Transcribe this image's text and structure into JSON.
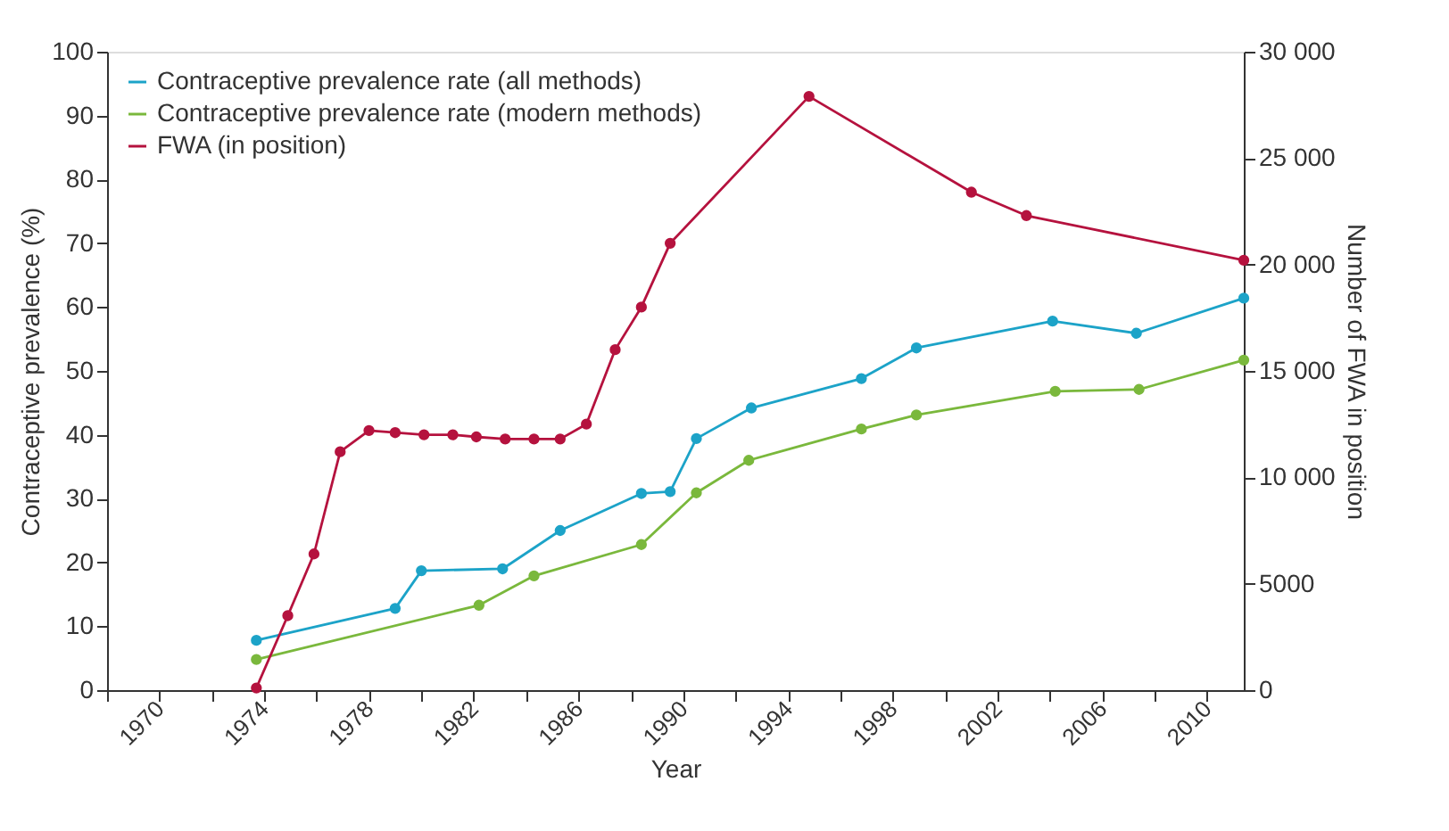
{
  "chart_data": {
    "type": "line",
    "xlabel": "Year",
    "ylabel": "Contraceptive prevalence (%)",
    "y2label": "Number of FWA in position",
    "xlim": [
      1968,
      2011.4
    ],
    "xticks": [
      {
        "value": 1968,
        "label": null
      },
      1970,
      {
        "value": 1972,
        "label": null
      },
      1974,
      {
        "value": 1976,
        "label": null
      },
      1978,
      {
        "value": 1980,
        "label": null
      },
      1982,
      {
        "value": 1984,
        "label": null
      },
      1986,
      {
        "value": 1988,
        "label": null
      },
      1990,
      {
        "value": 1992,
        "label": null
      },
      1994,
      {
        "value": 1996,
        "label": null
      },
      1998,
      {
        "value": 2000,
        "label": null
      },
      2002,
      {
        "value": 2004,
        "label": null
      },
      2006,
      {
        "value": 2008,
        "label": null
      },
      2010
    ],
    "ylim": [
      0,
      100
    ],
    "yticks": [
      0,
      10,
      20,
      30,
      40,
      50,
      60,
      70,
      80,
      90,
      100
    ],
    "y2lim": [
      0,
      30000
    ],
    "y2ticks": [
      0,
      5000,
      {
        "value": 10000,
        "label": "10 000"
      },
      {
        "value": 15000,
        "label": "15 000"
      },
      {
        "value": 20000,
        "label": "20 000"
      },
      {
        "value": 25000,
        "label": "25 000"
      },
      {
        "value": 30000,
        "label": "30 000"
      }
    ],
    "grid": false,
    "legend": "top left",
    "marker": "circle",
    "line_style": "solid",
    "series": [
      {
        "name": "Contraceptive prevalence rate (all methods)",
        "color": "#1ca3c8",
        "x": [
          1973.7,
          1979.0,
          1980.0,
          1983.1,
          1985.3,
          1988.4,
          1989.5,
          1990.5,
          1992.6,
          1996.8,
          1998.9,
          2004.1,
          2007.3,
          2011.4
        ],
        "values": [
          7.8,
          12.8,
          18.7,
          19.0,
          25.0,
          30.8,
          31.1,
          39.4,
          44.2,
          48.8,
          53.6,
          57.8,
          55.9,
          61.4
        ]
      },
      {
        "name": "Contraceptive prevalence rate (modern methods)",
        "color": "#7ab83c",
        "x": [
          1973.7,
          1982.2,
          1984.3,
          1988.4,
          1990.5,
          1992.5,
          1996.8,
          1998.9,
          2004.2,
          2007.4,
          2011.4
        ],
        "values": [
          4.8,
          13.3,
          17.9,
          22.8,
          30.9,
          36.0,
          40.9,
          43.1,
          46.8,
          47.1,
          51.7
        ]
      },
      {
        "name": "FWA (in position)",
        "color": "#b5123e",
        "axis": "y2",
        "x": [
          1973.7,
          1974.9,
          1975.9,
          1976.9,
          1978.0,
          1979.0,
          1980.1,
          1981.2,
          1982.1,
          1983.2,
          1984.3,
          1985.3,
          1986.3,
          1987.4,
          1988.4,
          1989.5,
          1994.8,
          2001.0,
          2003.1,
          2011.4
        ],
        "values": [
          100,
          3500,
          6400,
          11200,
          12200,
          12100,
          12000,
          12000,
          11900,
          11800,
          11800,
          11800,
          12500,
          16000,
          18000,
          21000,
          27900,
          23400,
          22300,
          20200
        ]
      }
    ]
  }
}
